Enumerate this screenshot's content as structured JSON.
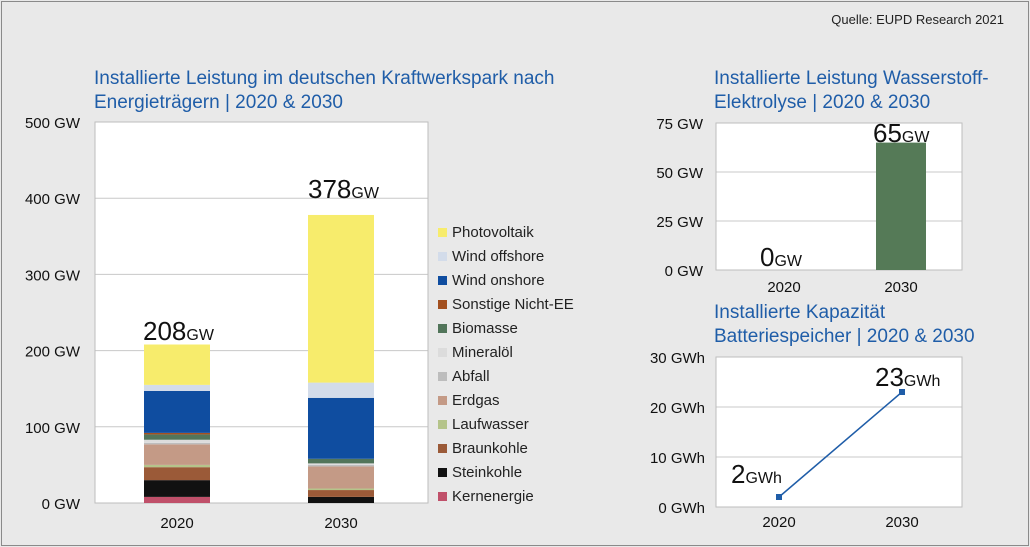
{
  "source": "Quelle: EUPD Research 2021",
  "chart_data": [
    {
      "type": "bar",
      "stacked": true,
      "title": "Installierte Leistung im deutschen Kraftwerkspark nach Energieträgern | 2020 & 2030",
      "categories": [
        "2020",
        "2030"
      ],
      "ylim": [
        0,
        500
      ],
      "yticks": [
        "0 GW",
        "100 GW",
        "200 GW",
        "300 GW",
        "400 GW",
        "500 GW"
      ],
      "grid": true,
      "legend_position": "right",
      "totals": [
        "208",
        "378"
      ],
      "total_unit": "GW",
      "series": [
        {
          "name": "Kernenergie",
          "color": "#c0506a",
          "values": [
            8,
            0
          ]
        },
        {
          "name": "Steinkohle",
          "color": "#111111",
          "values": [
            22,
            8
          ]
        },
        {
          "name": "Braunkohle",
          "color": "#9b5a38",
          "values": [
            17,
            9
          ]
        },
        {
          "name": "Laufwasser",
          "color": "#b5c48a",
          "values": [
            3,
            2
          ]
        },
        {
          "name": "Erdgas",
          "color": "#c49a86",
          "values": [
            27,
            29
          ]
        },
        {
          "name": "Abfall",
          "color": "#bdbdbd",
          "values": [
            2,
            2
          ]
        },
        {
          "name": "Mineralöl",
          "color": "#dcdcdc",
          "values": [
            4,
            2
          ]
        },
        {
          "name": "Biomasse",
          "color": "#52755a",
          "values": [
            7,
            6
          ]
        },
        {
          "name": "Sonstige Nicht-EE",
          "color": "#a3501f",
          "values": [
            2,
            0
          ]
        },
        {
          "name": "Wind onshore",
          "color": "#0f4da0",
          "values": [
            55,
            80
          ]
        },
        {
          "name": "Wind offshore",
          "color": "#d3dcea",
          "values": [
            8,
            20
          ]
        },
        {
          "name": "Photovoltaik",
          "color": "#f7ec6c",
          "values": [
            53,
            220
          ]
        }
      ]
    },
    {
      "type": "bar",
      "title": "Installierte Leistung Wasserstoff-Elektrolyse | 2020 & 2030",
      "categories": [
        "2020",
        "2030"
      ],
      "values": [
        0,
        65
      ],
      "value_labels": [
        "0",
        "65"
      ],
      "value_unit": "GW",
      "ylim": [
        0,
        75
      ],
      "yticks": [
        "0 GW",
        "25 GW",
        "50 GW",
        "75 GW"
      ],
      "grid": true,
      "color": "#557a57"
    },
    {
      "type": "line",
      "title": "Installierte Kapazität Batteriespeicher | 2020 & 2030",
      "categories": [
        "2020",
        "2030"
      ],
      "values": [
        2,
        23
      ],
      "value_labels": [
        "2",
        "23"
      ],
      "value_unit": "GWh",
      "ylim": [
        0,
        30
      ],
      "yticks": [
        "0 GWh",
        "10 GWh",
        "20 GWh",
        "30 GWh"
      ],
      "grid": true,
      "color": "#1f5da8"
    }
  ]
}
